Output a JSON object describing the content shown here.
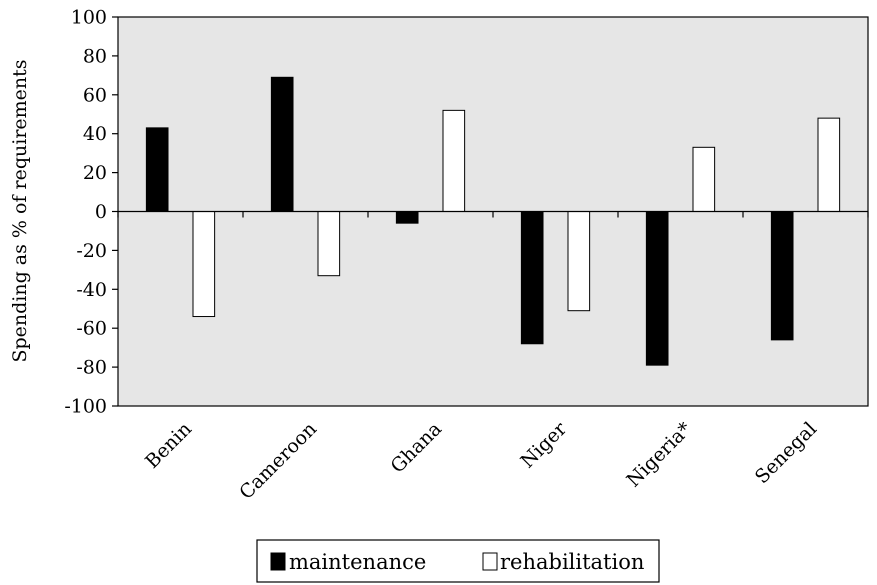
{
  "chart_data": {
    "type": "bar",
    "title": "",
    "xlabel": "",
    "ylabel": "Spending as % of requirements",
    "categories": [
      "Benin",
      "Cameroon",
      "Ghana",
      "Niger",
      "Nigeria*",
      "Senegal"
    ],
    "series": [
      {
        "name": "maintenance",
        "color": "#000000",
        "values": [
          43,
          69,
          -6,
          -68,
          -79,
          -66
        ]
      },
      {
        "name": "rehabilitation",
        "color": "#ffffff",
        "values": [
          -54,
          -33,
          52,
          -51,
          33,
          48
        ]
      }
    ],
    "ylim": [
      -100,
      100
    ],
    "yticks": [
      100,
      80,
      60,
      40,
      20,
      0,
      -20,
      -40,
      -60,
      -80,
      -100
    ],
    "plot_background": "#e6e6e6",
    "grid": false,
    "legend_position": "bottom-center"
  }
}
